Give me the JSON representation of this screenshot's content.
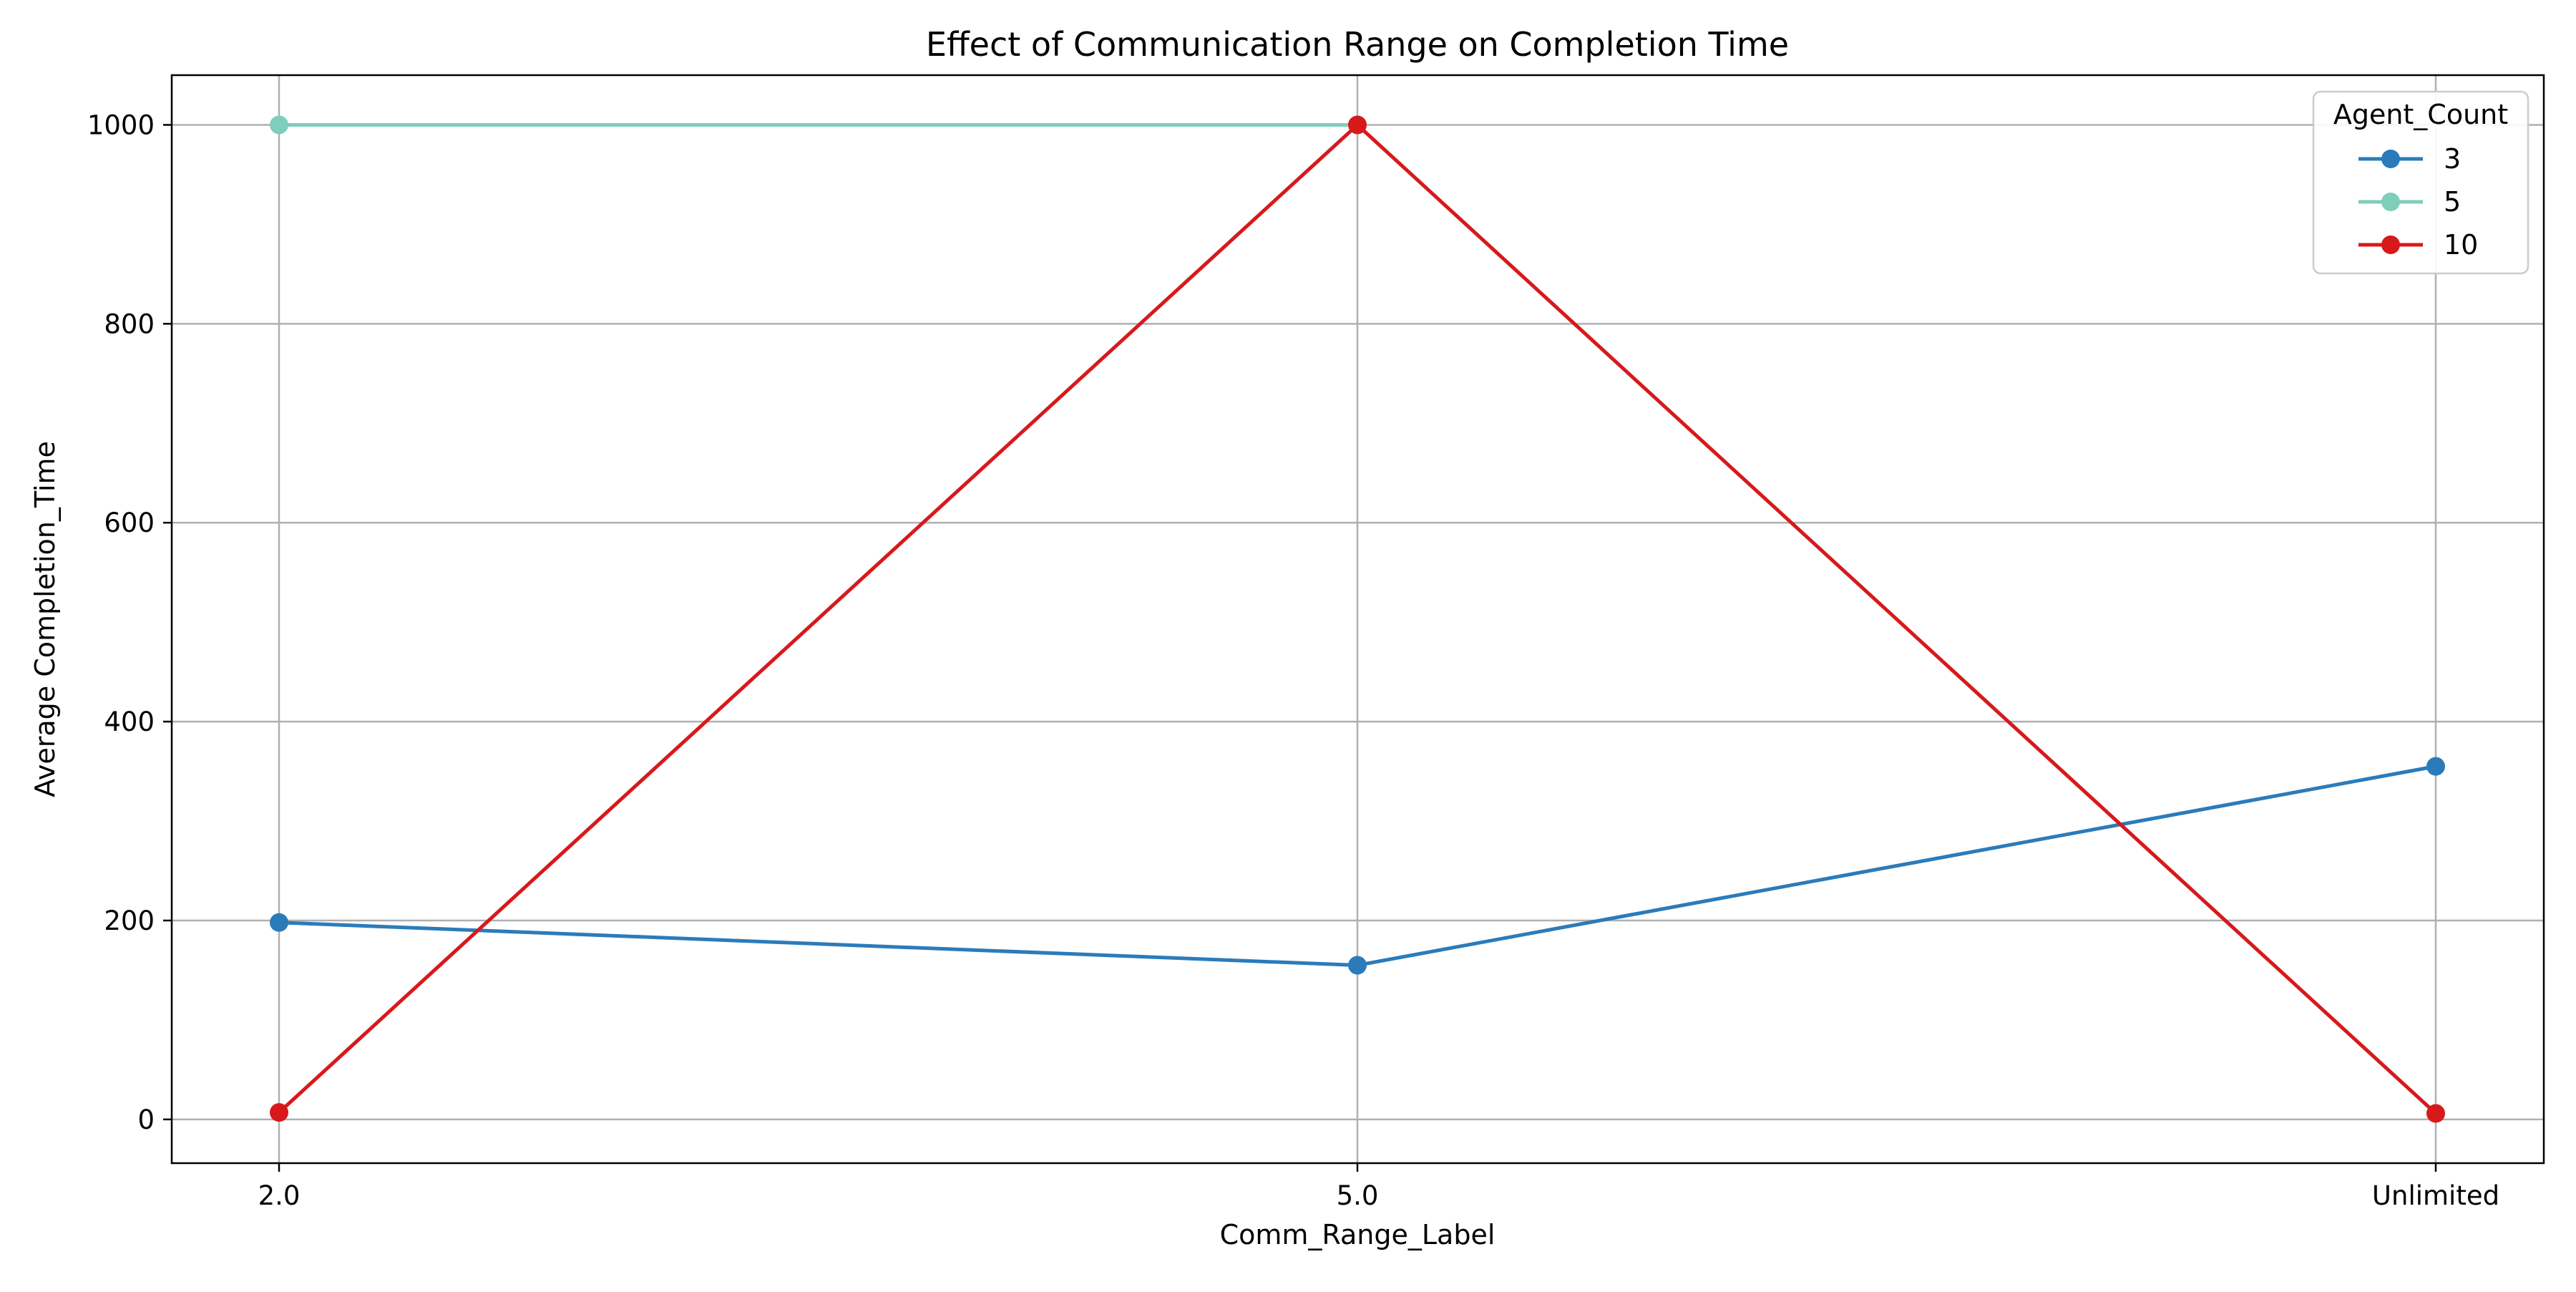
{
  "chart_data": {
    "type": "line",
    "title": "Effect of Communication Range on Completion Time",
    "xlabel": "Comm_Range_Label",
    "ylabel": "Average Completion_Time",
    "categories": [
      "2.0",
      "5.0",
      "Unlimited"
    ],
    "ylim": [
      -44,
      1050
    ],
    "yticks": [
      0,
      200,
      400,
      600,
      800,
      1000
    ],
    "grid": true,
    "legend": {
      "title": "Agent_Count",
      "placement": "top-right"
    },
    "series": [
      {
        "name": "3",
        "color": "#2b7bba",
        "values": [
          198,
          155,
          355
        ]
      },
      {
        "name": "5",
        "color": "#7fcdbb",
        "values": [
          1000,
          1000,
          null
        ]
      },
      {
        "name": "10",
        "color": "#d7191c",
        "values": [
          7,
          1000,
          6
        ]
      }
    ]
  }
}
